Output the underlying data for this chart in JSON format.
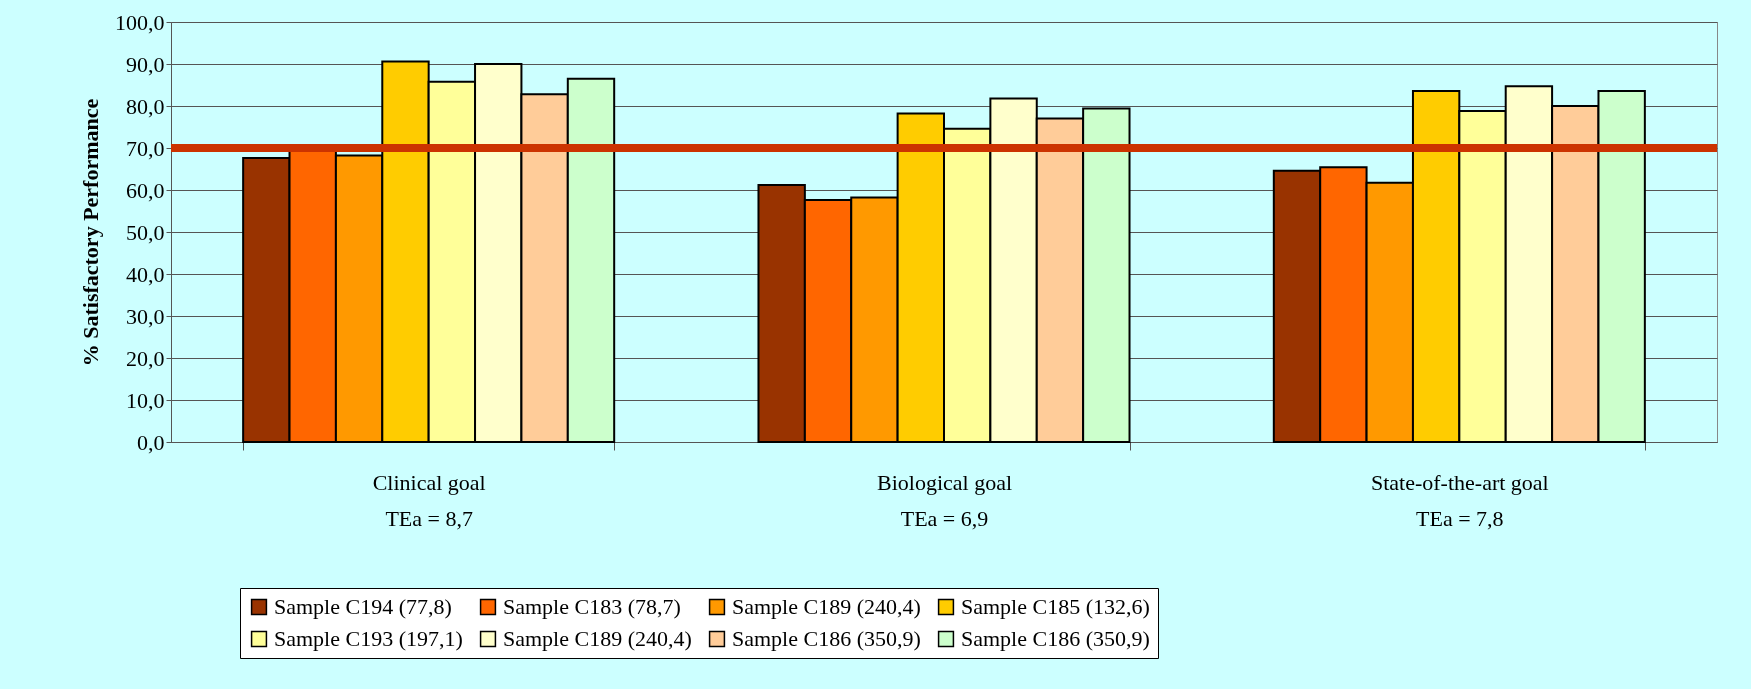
{
  "chart_data": {
    "type": "bar",
    "ylabel": "% Satisfactory Performance",
    "categories": [
      "Clinical goal\nTEa = 8,7",
      "Biological goal\nTEa = 6,9",
      "State-of-the-art goal\nTEa = 7,8"
    ],
    "series": [
      {
        "name": "Sample C194 (77,8)",
        "color": "#993300",
        "values": [
          67.6,
          61.2,
          64.6
        ]
      },
      {
        "name": "Sample C183 (78,7)",
        "color": "#ff6600",
        "values": [
          69.5,
          57.6,
          65.4
        ]
      },
      {
        "name": "Sample C189 (240,4)",
        "color": "#ff9900",
        "values": [
          68.2,
          58.2,
          61.7
        ]
      },
      {
        "name": "Sample C185 (132,6)",
        "color": "#ffcc00",
        "values": [
          90.6,
          78.2,
          83.6
        ]
      },
      {
        "name": "Sample C193 (197,1)",
        "color": "#ffff99",
        "values": [
          85.8,
          74.6,
          78.8
        ]
      },
      {
        "name": "Sample C189 (240,4)",
        "color": "#ffffcc",
        "values": [
          90.0,
          81.8,
          84.7
        ]
      },
      {
        "name": "Sample C186 (350,9)",
        "color": "#ffcc99",
        "values": [
          82.8,
          77.0,
          80.0
        ]
      },
      {
        "name": "Sample C186 (350,9)",
        "color": "#ccffcc",
        "values": [
          86.5,
          79.4,
          83.6
        ]
      }
    ],
    "ylim": [
      0,
      100
    ],
    "yticks": [
      {
        "value": 0,
        "label": "0,0"
      },
      {
        "value": 10,
        "label": "10,0"
      },
      {
        "value": 20,
        "label": "20,0"
      },
      {
        "value": 30,
        "label": "30,0"
      },
      {
        "value": 40,
        "label": "40,0"
      },
      {
        "value": 50,
        "label": "50,0"
      },
      {
        "value": 60,
        "label": "60,0"
      },
      {
        "value": 70,
        "label": "70,0"
      },
      {
        "value": 80,
        "label": "80,0"
      },
      {
        "value": 90,
        "label": "90,0"
      },
      {
        "value": 100,
        "label": "100,0"
      }
    ],
    "ref_lines": [
      {
        "axis": "y",
        "value": 70,
        "color": "#cc3300"
      }
    ],
    "grid": "y",
    "legend": "bottom"
  }
}
